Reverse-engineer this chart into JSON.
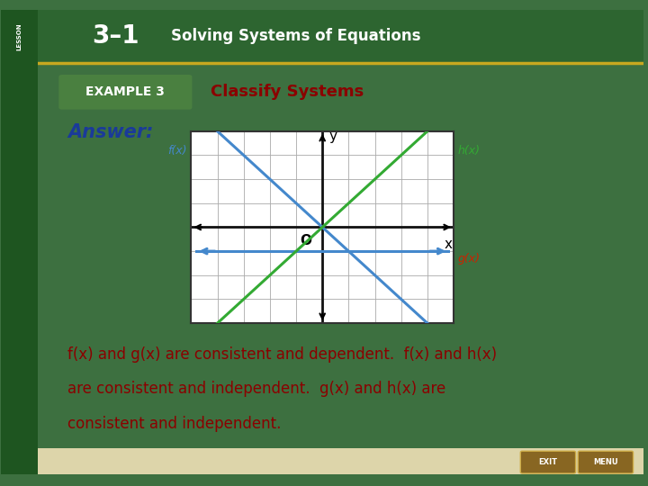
{
  "bg_outer": "#3d7040",
  "bg_slide": "#f5f4ec",
  "header_bg": "#2d6530",
  "example_bg": "#4a8040",
  "example_label": "EXAMPLE 3",
  "example_title": "Classify Systems",
  "answer_text": "Answer:",
  "answer_color": "#1a3a9a",
  "body_line1": "f(x) and g(x) are consistent and dependent.  f(x) and h(x)",
  "body_line2": "are consistent and independent.  g(x) and h(x) are",
  "body_line3": "consistent and independent.",
  "body_color": "#8b0000",
  "fx_color": "#4488cc",
  "gx_color": "#4488cc",
  "hx_color": "#33aa33",
  "fx_label_color": "#4488cc",
  "gx_label_color": "#cc2200",
  "hx_label_color": "#33aa33",
  "grid_color": "#aaaaaa",
  "axis_color": "#111111",
  "graph_xlim": [
    -5,
    5
  ],
  "graph_ylim": [
    -4,
    4
  ],
  "gold_line_color": "#c8a820",
  "left_strip_color": "#1e5520",
  "bottom_strip_color": "#ddd5aa"
}
